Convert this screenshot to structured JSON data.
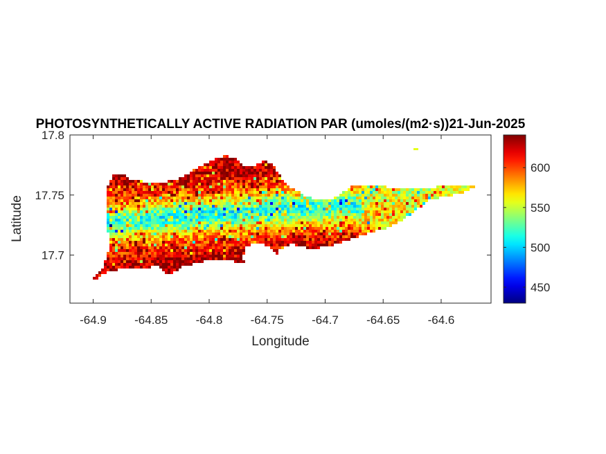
{
  "chart_data": {
    "type": "heatmap",
    "title": "PHOTOSYNTHETICALLY ACTIVE RADIATION PAR (umoles/(m2·s))21-Jun-2025",
    "xlabel": "Longitude",
    "ylabel": "Latitude",
    "xlim": [
      -64.92,
      -64.557
    ],
    "ylim": [
      17.66,
      17.8
    ],
    "xticks": [
      -64.9,
      -64.85,
      -64.8,
      -64.75,
      -64.7,
      -64.65,
      -64.6
    ],
    "xtick_labels": [
      "-64.9",
      "-64.85",
      "-64.8",
      "-64.75",
      "-64.7",
      "-64.65",
      "-64.6"
    ],
    "yticks": [
      17.7,
      17.75,
      17.8
    ],
    "ytick_labels": [
      "17.7",
      "17.75",
      "17.8"
    ],
    "colormap": "jet",
    "clim": [
      430,
      641
    ],
    "colorbar_ticks": [
      450,
      500,
      550,
      600
    ],
    "colorbar_tick_labels": [
      "450",
      "500",
      "550",
      "600"
    ],
    "grid": false,
    "description_of_field": {
      "typical_range": [
        450,
        640
      ],
      "low_values_band": "central west-east ridge (~490-520)",
      "high_values": "north-west and south-west coasts (~600-640)"
    }
  }
}
